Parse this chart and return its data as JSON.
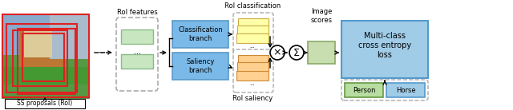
{
  "fig_width": 6.4,
  "fig_height": 1.38,
  "dpi": 100,
  "bg_color": "#ffffff",
  "ss_label": "SS proposals (RoI)",
  "roi_features_label": "RoI features",
  "roi_class_label": "RoI classification",
  "roi_saliency_label": "RoI saliency",
  "image_scores_label": "Image\nscores",
  "class_branch_label": "Classification\nbranch",
  "saliency_branch_label": "Saliency\nbranch",
  "loss_label": "Multi-class\ncross entropy\nloss",
  "person_label": "Person",
  "horse_label": "Horse",
  "blue_fc": "#7ab9e8",
  "blue_ec": "#5a99c8",
  "green_feat_fc": "#c8e6c0",
  "green_feat_ec": "#88bb88",
  "yellow_fc": "#ffffaa",
  "yellow_ec": "#ccaa44",
  "orange_fc": "#ffd090",
  "orange_ec": "#cc8833",
  "loss_fc": "#a0cce8",
  "loss_ec": "#5599cc",
  "score_fc": "#c8ddb0",
  "score_ec": "#88aa66",
  "person_fc": "#b8dda0",
  "person_ec": "#669944",
  "horse_fc": "#a0cce8",
  "horse_ec": "#5599cc",
  "dashed_ec": "#aaaaaa",
  "roi_box_color": "#dd2222",
  "photo_sky": "#88aacc",
  "photo_ground": "#559944",
  "photo_horse": "#bb7733",
  "photo_fence": "#44aa44"
}
